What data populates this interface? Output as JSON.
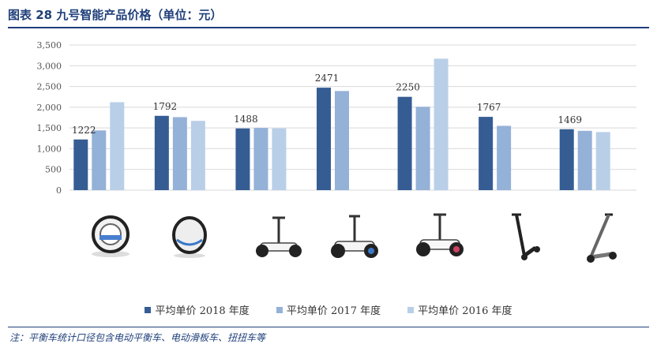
{
  "figure": {
    "title": "图表 28  九号智能产品价格（单位：元）",
    "note": "注：平衡车统计口径包含电动平衡车、电动滑板车、扭扭车等"
  },
  "colors": {
    "s2018": "#355d94",
    "s2017": "#94b1d8",
    "s2016": "#b9cfe8",
    "grid": "#d9d9d9",
    "accent": "#1f3f7a"
  },
  "legend": [
    {
      "label": "平均单价 2018 年度",
      "color": "#355d94"
    },
    {
      "label": "平均单价 2017 年度",
      "color": "#94b1d8"
    },
    {
      "label": "平均单价 2016 年度",
      "color": "#b9cfe8"
    }
  ],
  "products": [
    {
      "icon": "unicycle-icon"
    },
    {
      "icon": "unicycle-round-icon"
    },
    {
      "icon": "self-balancing-scooter-icon"
    },
    {
      "icon": "self-balancing-scooter-icon"
    },
    {
      "icon": "self-balancing-scooter-icon"
    },
    {
      "icon": "kick-scooter-icon"
    },
    {
      "icon": "kick-scooter-icon"
    }
  ],
  "chart_data": {
    "type": "bar",
    "categories": [
      "",
      "",
      "",
      "",
      "",
      "",
      ""
    ],
    "series": [
      {
        "name": "平均单价 2018 年度",
        "values": [
          1222,
          1792,
          1488,
          2471,
          2250,
          1767,
          1469
        ]
      },
      {
        "name": "平均单价 2017 年度",
        "values": [
          1440,
          1760,
          1500,
          2390,
          2010,
          1550,
          1430
        ]
      },
      {
        "name": "平均单价 2016 年度",
        "values": [
          2120,
          1670,
          1490,
          null,
          3170,
          null,
          1400
        ]
      }
    ],
    "data_labels": [
      "1222",
      "1792",
      "1488",
      "2471",
      "2250",
      "1767",
      "1469"
    ],
    "y_ticks": [
      "0",
      "500",
      "1,000",
      "1,500",
      "2,000",
      "2,500",
      "3,000",
      "3,500"
    ],
    "ylim": [
      0,
      3500
    ],
    "grid": true,
    "legend_position": "bottom"
  }
}
